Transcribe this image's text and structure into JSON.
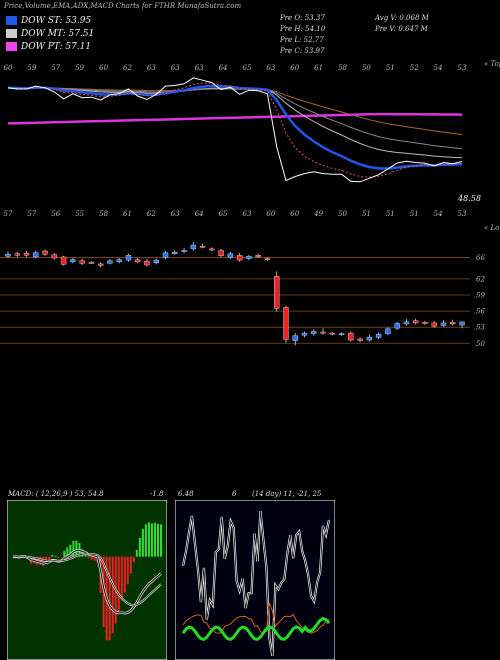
{
  "header": {
    "title": "Price,Volume,EMA,ADX,MACD Charts for FTHR MunafaSutra.com"
  },
  "legend": [
    {
      "label": "DOW ST: 53.95",
      "color": "#2255ee"
    },
    {
      "label": "DOW MT: 57.51",
      "color": "#cccccc"
    },
    {
      "label": "DOW PT: 57.11",
      "color": "#ee44ee"
    }
  ],
  "stats": {
    "pre_o": "Pre   O: 53.37",
    "pre_h": "Pre   H: 54.10",
    "pre_l": "Pre   L: 52.77",
    "pre_c": "Pre   C: 53.97",
    "avg_v": "Avg V: 0.068  M",
    "pre_v": "Pre   V: 0.647 M"
  },
  "top_pane": {
    "corner_label": "« Tops",
    "last_value_label": "48.58",
    "top_labels": [
      "60",
      "59",
      "57",
      "59",
      "60",
      "62",
      "63",
      "63",
      "63",
      "64",
      "65",
      "63",
      "60",
      "61",
      "58",
      "50",
      "51",
      "52",
      "54",
      "53"
    ],
    "bottom_labels": [
      "57",
      "57",
      "56",
      "55",
      "58",
      "61",
      "62",
      "63",
      "64",
      "65",
      "63",
      "60",
      "60",
      "49",
      "50",
      "51",
      "51",
      "51",
      "54",
      "53"
    ]
  },
  "candle_pane": {
    "corner_label": "« Lows",
    "y_ticks": [
      "66",
      "62",
      "59",
      "56",
      "53",
      "50"
    ],
    "candles": [
      {
        "o": 66.2,
        "c": 66.6,
        "h": 67.1,
        "l": 66.0
      },
      {
        "o": 66.7,
        "c": 66.4,
        "h": 67.0,
        "l": 66.1
      },
      {
        "o": 66.8,
        "c": 66.4,
        "h": 67.2,
        "l": 66.1
      },
      {
        "o": 66.1,
        "c": 66.9,
        "h": 67.3,
        "l": 65.9
      },
      {
        "o": 67.2,
        "c": 66.6,
        "h": 67.5,
        "l": 66.3
      },
      {
        "o": 66.5,
        "c": 65.9,
        "h": 66.8,
        "l": 65.6
      },
      {
        "o": 66.1,
        "c": 64.7,
        "h": 66.3,
        "l": 64.5
      },
      {
        "o": 65.2,
        "c": 65.6,
        "h": 65.9,
        "l": 64.9
      },
      {
        "o": 65.4,
        "c": 64.9,
        "h": 65.8,
        "l": 64.6
      },
      {
        "o": 65.1,
        "c": 65.0,
        "h": 65.3,
        "l": 64.8
      },
      {
        "o": 64.8,
        "c": 64.5,
        "h": 65.1,
        "l": 64.2
      },
      {
        "o": 64.9,
        "c": 65.4,
        "h": 65.7,
        "l": 64.7
      },
      {
        "o": 65.2,
        "c": 65.6,
        "h": 65.9,
        "l": 64.9
      },
      {
        "o": 65.5,
        "c": 66.4,
        "h": 66.7,
        "l": 65.2
      },
      {
        "o": 65.6,
        "c": 65.2,
        "h": 65.9,
        "l": 64.9
      },
      {
        "o": 65.3,
        "c": 64.6,
        "h": 65.8,
        "l": 64.3
      },
      {
        "o": 65.0,
        "c": 65.5,
        "h": 65.8,
        "l": 64.7
      },
      {
        "o": 66.0,
        "c": 66.9,
        "h": 67.2,
        "l": 65.7
      },
      {
        "o": 66.7,
        "c": 67.0,
        "h": 67.3,
        "l": 66.5
      },
      {
        "o": 67.1,
        "c": 67.3,
        "h": 67.8,
        "l": 66.8
      },
      {
        "o": 67.6,
        "c": 68.3,
        "h": 68.9,
        "l": 67.3
      },
      {
        "o": 68.1,
        "c": 67.9,
        "h": 68.6,
        "l": 67.7
      },
      {
        "o": 67.6,
        "c": 67.5,
        "h": 67.9,
        "l": 67.2
      },
      {
        "o": 67.3,
        "c": 66.3,
        "h": 67.6,
        "l": 66.0
      },
      {
        "o": 66.0,
        "c": 66.7,
        "h": 67.0,
        "l": 65.7
      },
      {
        "o": 66.4,
        "c": 65.5,
        "h": 66.8,
        "l": 65.2
      },
      {
        "o": 65.8,
        "c": 66.2,
        "h": 66.5,
        "l": 65.5
      },
      {
        "o": 66.4,
        "c": 66.1,
        "h": 66.7,
        "l": 65.9
      },
      {
        "o": 65.8,
        "c": 65.6,
        "h": 66.0,
        "l": 65.3
      },
      {
        "o": 62.5,
        "c": 56.5,
        "h": 63.4,
        "l": 55.9
      },
      {
        "o": 56.7,
        "c": 50.7,
        "h": 57.0,
        "l": 50.1
      },
      {
        "o": 50.5,
        "c": 51.4,
        "h": 51.9,
        "l": 49.6
      },
      {
        "o": 51.5,
        "c": 51.9,
        "h": 52.2,
        "l": 51.1
      },
      {
        "o": 51.8,
        "c": 52.2,
        "h": 52.6,
        "l": 51.4
      },
      {
        "o": 52.1,
        "c": 51.9,
        "h": 52.8,
        "l": 51.6
      },
      {
        "o": 51.9,
        "c": 51.8,
        "h": 52.1,
        "l": 51.5
      },
      {
        "o": 51.7,
        "c": 51.8,
        "h": 52.0,
        "l": 51.4
      },
      {
        "o": 51.9,
        "c": 50.6,
        "h": 52.2,
        "l": 50.3
      },
      {
        "o": 50.8,
        "c": 50.5,
        "h": 51.1,
        "l": 50.2
      },
      {
        "o": 50.6,
        "c": 51.1,
        "h": 51.6,
        "l": 50.3
      },
      {
        "o": 51.1,
        "c": 51.7,
        "h": 52.0,
        "l": 50.8
      },
      {
        "o": 51.8,
        "c": 52.7,
        "h": 53.0,
        "l": 51.5
      },
      {
        "o": 52.8,
        "c": 53.7,
        "h": 54.0,
        "l": 52.5
      },
      {
        "o": 53.6,
        "c": 54.0,
        "h": 54.5,
        "l": 53.3
      },
      {
        "o": 54.2,
        "c": 53.8,
        "h": 54.6,
        "l": 53.5
      },
      {
        "o": 53.9,
        "c": 53.7,
        "h": 54.2,
        "l": 53.4
      },
      {
        "o": 53.8,
        "c": 53.2,
        "h": 54.1,
        "l": 52.9
      },
      {
        "o": 53.3,
        "c": 53.8,
        "h": 54.3,
        "l": 53.0
      },
      {
        "o": 53.9,
        "c": 53.6,
        "h": 54.4,
        "l": 53.3
      },
      {
        "o": 53.4,
        "c": 53.97,
        "h": 54.1,
        "l": 52.77
      }
    ]
  },
  "macd_pane": {
    "title": "MACD: ( 12,26,9 ) 53, 54.8",
    "value_label": "-1.8"
  },
  "adx_pane": {
    "title_left": "6.48",
    "title_mid": "6",
    "title_right": "(14  day) 11,  -21,  25"
  }
}
